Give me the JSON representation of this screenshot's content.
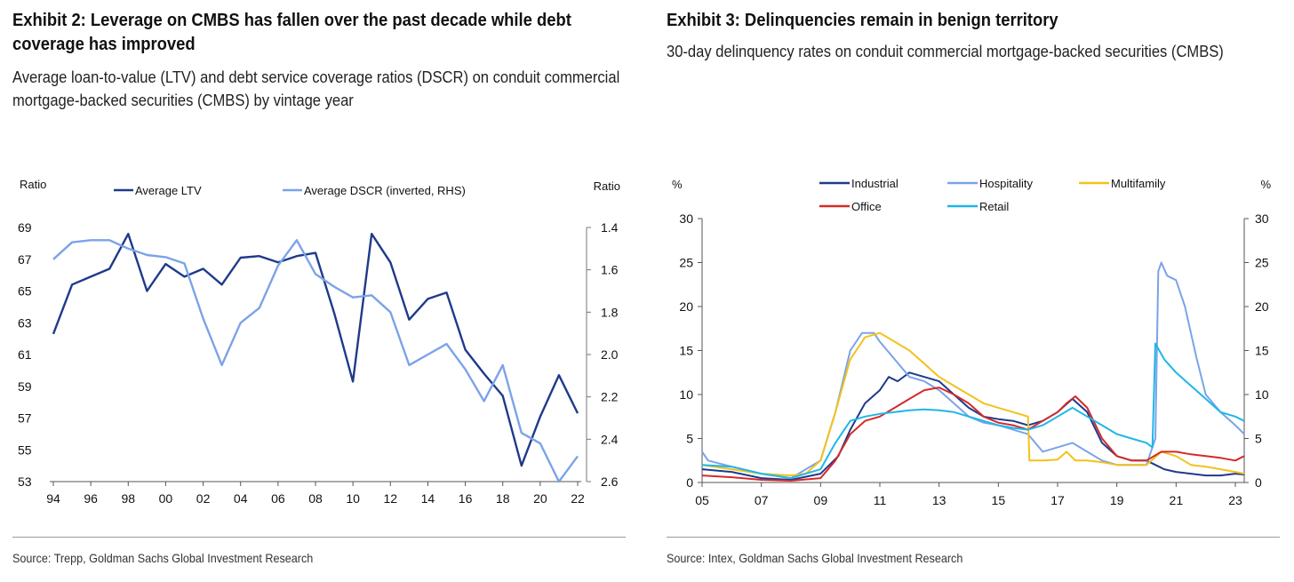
{
  "left": {
    "title": "Exhibit 2: Leverage on CMBS has fallen over the past decade while debt coverage has improved",
    "subtitle": "Average loan-to-value (LTV) and debt service coverage ratios (DSCR) on conduit commercial mortgage-backed securities (CMBS) by vintage year",
    "source": "Source: Trepp, Goldman Sachs Global Investment Research"
  },
  "right": {
    "title": "Exhibit 3: Delinquencies remain in benign territory",
    "subtitle": "30-day delinquency rates on conduit commercial mortgage-backed securities (CMBS)",
    "source": "Source: Intex, Goldman Sachs Global Investment Research"
  },
  "chart_data": [
    {
      "type": "line",
      "ylabel": "Ratio",
      "y2label": "Ratio",
      "xlim": [
        1994,
        2022
      ],
      "ylim": [
        53,
        69
      ],
      "y2lim": [
        1.4,
        2.6
      ],
      "y2_inverted": true,
      "xticks": [
        1994,
        1996,
        1998,
        2000,
        2002,
        2004,
        2006,
        2008,
        2010,
        2012,
        2014,
        2016,
        2018,
        2020,
        2022
      ],
      "xtick_labels": [
        "94",
        "96",
        "98",
        "00",
        "02",
        "04",
        "06",
        "08",
        "10",
        "12",
        "14",
        "16",
        "18",
        "20",
        "22"
      ],
      "yticks": [
        53,
        55,
        57,
        59,
        61,
        63,
        65,
        67,
        69
      ],
      "y2ticks": [
        1.4,
        1.6,
        1.8,
        2.0,
        2.2,
        2.4,
        2.6
      ],
      "y2tick_labels": [
        "1.4",
        "1.6",
        "1.8",
        "2.0",
        "2.2",
        "2.4",
        "2.6"
      ],
      "legend_position": "top",
      "series": [
        {
          "name": "Average LTV",
          "axis": "left",
          "color": "#1f3a8a",
          "x": [
            1994,
            1995,
            1996,
            1997,
            1998,
            1999,
            2000,
            2001,
            2002,
            2003,
            2004,
            2005,
            2006,
            2007,
            2008,
            2009,
            2010,
            2011,
            2012,
            2013,
            2014,
            2015,
            2016,
            2017,
            2018,
            2019,
            2020,
            2021,
            2022
          ],
          "y": [
            62.3,
            65.4,
            65.9,
            66.4,
            68.6,
            65.0,
            66.7,
            65.9,
            66.4,
            65.4,
            67.1,
            67.2,
            66.8,
            67.2,
            67.4,
            63.6,
            59.3,
            68.6,
            66.8,
            63.2,
            64.5,
            64.9,
            61.3,
            59.8,
            58.4,
            54.0,
            57.1,
            59.7,
            57.3
          ]
        },
        {
          "name": "Average DSCR (inverted, RHS)",
          "axis": "right",
          "color": "#7ba3e8",
          "x": [
            1994,
            1995,
            1996,
            1997,
            1998,
            1999,
            2000,
            2001,
            2002,
            2003,
            2004,
            2005,
            2006,
            2007,
            2008,
            2009,
            2010,
            2011,
            2012,
            2013,
            2014,
            2015,
            2016,
            2017,
            2018,
            2019,
            2020,
            2021,
            2022
          ],
          "y": [
            1.55,
            1.47,
            1.46,
            1.46,
            1.5,
            1.53,
            1.54,
            1.57,
            1.83,
            2.05,
            1.85,
            1.78,
            1.58,
            1.46,
            1.62,
            1.68,
            1.73,
            1.72,
            1.8,
            2.05,
            2.0,
            1.95,
            2.07,
            2.22,
            2.05,
            2.37,
            2.42,
            2.6,
            2.48
          ]
        }
      ]
    },
    {
      "type": "line",
      "ylabel": "%",
      "y2label": "%",
      "xlim": [
        2005,
        2023.3
      ],
      "ylim": [
        0,
        30
      ],
      "yticks": [
        0,
        5,
        10,
        15,
        20,
        25,
        30
      ],
      "xticks": [
        2005,
        2007,
        2009,
        2011,
        2013,
        2015,
        2017,
        2019,
        2021,
        2023
      ],
      "xtick_labels": [
        "05",
        "07",
        "09",
        "11",
        "13",
        "15",
        "17",
        "19",
        "21",
        "23"
      ],
      "legend_position": "top",
      "series": [
        {
          "name": "Industrial",
          "color": "#1f3a8a",
          "x": [
            2005,
            2006,
            2007,
            2008,
            2009,
            2009.6,
            2010,
            2010.5,
            2011,
            2011.3,
            2011.6,
            2012,
            2012.5,
            2013,
            2013.5,
            2014,
            2014.5,
            2015,
            2015.5,
            2016,
            2016.5,
            2017,
            2017.5,
            2018,
            2018.5,
            2019,
            2019.5,
            2020,
            2020.3,
            2020.6,
            2021,
            2021.5,
            2022,
            2022.5,
            2023,
            2023.3
          ],
          "y": [
            1.5,
            1.2,
            0.5,
            0.3,
            1.0,
            3.0,
            6.0,
            9.0,
            10.5,
            12.0,
            11.5,
            12.5,
            12.0,
            11.5,
            10.0,
            8.5,
            7.5,
            7.2,
            7.0,
            6.5,
            7.0,
            8.0,
            9.5,
            8.0,
            4.5,
            3.0,
            2.5,
            2.5,
            2.0,
            1.5,
            1.2,
            1.0,
            0.8,
            0.8,
            1.0,
            0.9
          ]
        },
        {
          "name": "Hospitality",
          "color": "#7ba3e8",
          "x": [
            2005,
            2005.2,
            2006,
            2007,
            2008,
            2009,
            2009.5,
            2010,
            2010.4,
            2010.8,
            2011,
            2011.5,
            2012,
            2012.5,
            2013,
            2013.5,
            2014,
            2014.5,
            2015,
            2015.5,
            2016,
            2016.5,
            2017,
            2017.5,
            2018,
            2018.5,
            2019,
            2019.5,
            2020,
            2020.3,
            2020.4,
            2020.5,
            2020.7,
            2021,
            2021.3,
            2021.7,
            2022,
            2022.5,
            2023,
            2023.3
          ],
          "y": [
            3.5,
            2.5,
            1.8,
            1.0,
            0.5,
            2.5,
            8.0,
            15.0,
            17.0,
            17.0,
            16.0,
            14.0,
            12.0,
            11.5,
            10.5,
            9.0,
            7.5,
            6.8,
            6.5,
            6.0,
            5.5,
            3.5,
            4.0,
            4.5,
            3.5,
            2.5,
            2.0,
            2.0,
            2.0,
            5.0,
            24.0,
            25.0,
            23.5,
            23.0,
            20.0,
            14.0,
            10.0,
            8.0,
            6.5,
            5.5
          ]
        },
        {
          "name": "Multifamily",
          "color": "#f2c21b",
          "x": [
            2005,
            2006,
            2007,
            2008,
            2008.5,
            2009,
            2009.5,
            2010,
            2010.5,
            2011,
            2011.5,
            2012,
            2012.5,
            2013,
            2013.5,
            2014,
            2014.5,
            2015,
            2015.5,
            2016,
            2016.05,
            2016.5,
            2017,
            2017.3,
            2017.6,
            2018,
            2018.5,
            2019,
            2019.5,
            2020,
            2020.5,
            2021,
            2021.5,
            2022,
            2022.5,
            2023,
            2023.3
          ],
          "y": [
            2.0,
            1.5,
            1.0,
            0.8,
            1.0,
            2.5,
            8.0,
            14.0,
            16.5,
            17.0,
            16.0,
            15.0,
            13.5,
            12.0,
            11.0,
            10.0,
            9.0,
            8.5,
            8.0,
            7.5,
            2.5,
            2.5,
            2.6,
            3.5,
            2.5,
            2.5,
            2.3,
            2.0,
            2.0,
            2.0,
            3.5,
            3.0,
            2.0,
            1.8,
            1.5,
            1.2,
            1.0
          ]
        },
        {
          "name": "Office",
          "color": "#d42a2a",
          "x": [
            2005,
            2006,
            2007,
            2008,
            2009,
            2009.5,
            2010,
            2010.5,
            2011,
            2011.5,
            2012,
            2012.5,
            2013,
            2013.5,
            2014,
            2014.5,
            2015,
            2015.5,
            2016,
            2016.5,
            2017,
            2017.3,
            2017.6,
            2018,
            2018.5,
            2019,
            2019.5,
            2020,
            2020.5,
            2021,
            2021.5,
            2022,
            2022.5,
            2023,
            2023.3
          ],
          "y": [
            0.8,
            0.6,
            0.3,
            0.2,
            0.5,
            2.5,
            5.5,
            7.0,
            7.5,
            8.5,
            9.5,
            10.5,
            10.8,
            10.0,
            9.0,
            7.5,
            6.8,
            6.5,
            6.0,
            7.0,
            8.0,
            9.0,
            9.8,
            8.5,
            5.0,
            3.0,
            2.5,
            2.5,
            3.5,
            3.5,
            3.2,
            3.0,
            2.8,
            2.5,
            3.0
          ]
        },
        {
          "name": "Retail",
          "color": "#1fb6e8",
          "x": [
            2005,
            2006,
            2007,
            2008,
            2009,
            2009.5,
            2010,
            2010.5,
            2011,
            2011.5,
            2012,
            2012.5,
            2013,
            2013.5,
            2014,
            2014.5,
            2015,
            2015.5,
            2016,
            2016.5,
            2017,
            2017.5,
            2018,
            2018.5,
            2019,
            2019.5,
            2020,
            2020.2,
            2020.3,
            2020.6,
            2021,
            2021.5,
            2022,
            2022.5,
            2023,
            2023.3
          ],
          "y": [
            2.0,
            1.8,
            1.0,
            0.5,
            1.5,
            4.5,
            7.0,
            7.5,
            7.8,
            8.0,
            8.2,
            8.3,
            8.2,
            8.0,
            7.5,
            7.0,
            6.5,
            6.2,
            6.0,
            6.5,
            7.5,
            8.5,
            7.5,
            6.5,
            5.5,
            5.0,
            4.5,
            4.0,
            15.8,
            14.0,
            12.5,
            11.0,
            9.5,
            8.0,
            7.5,
            7.0
          ]
        }
      ]
    }
  ]
}
